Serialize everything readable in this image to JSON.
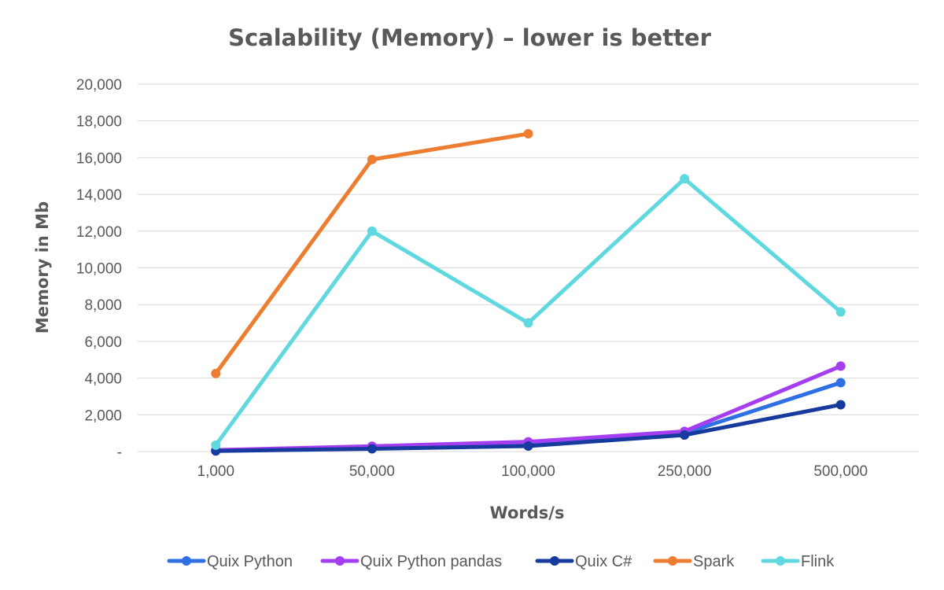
{
  "chart_data": {
    "type": "line",
    "title": "Scalability (Memory) – lower is better",
    "xlabel": "Words/s",
    "ylabel": "Memory in Mb",
    "categories": [
      "1,000",
      "50,000",
      "100,000",
      "250,000",
      "500,000"
    ],
    "ylim": [
      0,
      20000
    ],
    "yticks": [
      {
        "value": 0,
        "label": "-"
      },
      {
        "value": 2000,
        "label": "2,000"
      },
      {
        "value": 4000,
        "label": "4,000"
      },
      {
        "value": 6000,
        "label": "6,000"
      },
      {
        "value": 8000,
        "label": "8,000"
      },
      {
        "value": 10000,
        "label": "10,000"
      },
      {
        "value": 12000,
        "label": "12,000"
      },
      {
        "value": 14000,
        "label": "14,000"
      },
      {
        "value": 16000,
        "label": "16,000"
      },
      {
        "value": 18000,
        "label": "18,000"
      },
      {
        "value": 20000,
        "label": "20,000"
      }
    ],
    "grid": true,
    "legend_position": "bottom",
    "series": [
      {
        "name": "Quix Python",
        "color": "#2f6fe4",
        "values": [
          60,
          250,
          480,
          1000,
          3750
        ]
      },
      {
        "name": "Quix Python pandas",
        "color": "#a43ef0",
        "values": [
          80,
          290,
          530,
          1100,
          4650
        ]
      },
      {
        "name": "Quix C#",
        "color": "#163a9e",
        "values": [
          30,
          150,
          300,
          900,
          2550
        ]
      },
      {
        "name": "Spark",
        "color": "#ed7d31",
        "values": [
          4250,
          15900,
          17300,
          null,
          null
        ]
      },
      {
        "name": "Flink",
        "color": "#5fd8df",
        "values": [
          350,
          12000,
          7000,
          14850,
          7600
        ]
      }
    ]
  }
}
